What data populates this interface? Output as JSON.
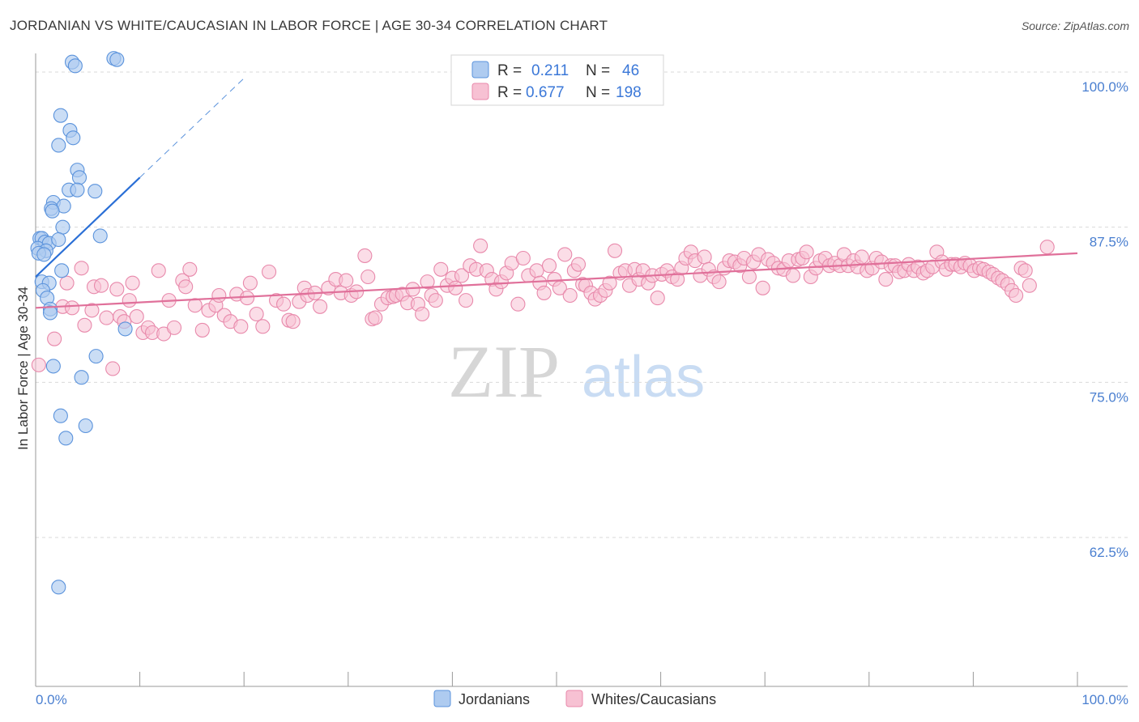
{
  "title": "JORDANIAN VS WHITE/CAUCASIAN IN LABOR FORCE | AGE 30-34 CORRELATION CHART",
  "source": "Source: ZipAtlas.com",
  "colors": {
    "blue_fill": "#aecbf0",
    "blue_stroke": "#5b93dc",
    "blue_line": "#2a6fd6",
    "pink_fill": "#f7c1d3",
    "pink_stroke": "#e889ab",
    "pink_line": "#e0709a",
    "grid": "#d9d9d9",
    "tick_text": "#4a7fd0"
  },
  "legend": {
    "rows": [
      {
        "r_label": "R =",
        "r_value": "0.211",
        "n_label": "N =",
        "n_value": "46"
      },
      {
        "r_label": "R =",
        "r_value": "0.677",
        "n_label": "N =",
        "n_value": "198"
      }
    ]
  },
  "bottom_legend": [
    "Jordanians",
    "Whites/Caucasians"
  ],
  "watermark": {
    "zip": "ZIP",
    "atlas": "atlas"
  },
  "chart_data": {
    "type": "scatter",
    "title": "JORDANIAN VS WHITE/CAUCASIAN IN LABOR FORCE | AGE 30-34 CORRELATION CHART",
    "xlabel": "",
    "ylabel": "In Labor Force | Age 30-34",
    "xlim": [
      0,
      100
    ],
    "ylim": [
      50.5,
      101.5
    ],
    "x_tick_labels": [
      "0.0%",
      "100.0%"
    ],
    "y_ticks": [
      62.5,
      75.0,
      87.5,
      100.0
    ],
    "y_tick_labels": [
      "62.5%",
      "75.0%",
      "87.5%",
      "100.0%"
    ],
    "grid": true,
    "series": [
      {
        "name": "Jordanians",
        "R": 0.211,
        "N": 46,
        "trend": {
          "x0": 0.0,
          "y0": 83.5,
          "x1": 10.0,
          "y1": 91.5,
          "dash_x1": 20.0,
          "dash_y1": 99.5
        },
        "points": [
          [
            3.5,
            100.8
          ],
          [
            3.8,
            100.5
          ],
          [
            7.5,
            101.1
          ],
          [
            7.8,
            101.0
          ],
          [
            2.4,
            96.5
          ],
          [
            3.3,
            95.3
          ],
          [
            3.6,
            94.7
          ],
          [
            2.2,
            94.1
          ],
          [
            4.0,
            92.1
          ],
          [
            4.2,
            91.5
          ],
          [
            3.2,
            90.5
          ],
          [
            4.0,
            90.5
          ],
          [
            5.7,
            90.4
          ],
          [
            1.7,
            89.5
          ],
          [
            1.5,
            89.0
          ],
          [
            2.7,
            89.2
          ],
          [
            1.6,
            88.8
          ],
          [
            2.6,
            87.5
          ],
          [
            0.4,
            86.6
          ],
          [
            0.6,
            86.6
          ],
          [
            0.9,
            86.3
          ],
          [
            1.3,
            86.2
          ],
          [
            2.2,
            86.5
          ],
          [
            6.2,
            86.8
          ],
          [
            0.2,
            85.8
          ],
          [
            1.0,
            85.6
          ],
          [
            0.3,
            85.4
          ],
          [
            0.8,
            85.3
          ],
          [
            2.5,
            84.0
          ],
          [
            0.6,
            83.1
          ],
          [
            1.3,
            83.0
          ],
          [
            0.7,
            82.4
          ],
          [
            1.1,
            81.8
          ],
          [
            1.4,
            80.9
          ],
          [
            1.4,
            80.6
          ],
          [
            8.6,
            79.3
          ],
          [
            5.8,
            77.1
          ],
          [
            1.7,
            76.3
          ],
          [
            4.4,
            75.4
          ],
          [
            2.4,
            72.3
          ],
          [
            4.8,
            71.5
          ],
          [
            2.9,
            70.5
          ],
          [
            2.2,
            58.5
          ]
        ]
      },
      {
        "name": "Whites/Caucasians",
        "R": 0.677,
        "N": 198,
        "trend": {
          "x0": 0.0,
          "y0": 81.0,
          "x1": 100.0,
          "y1": 85.4
        },
        "points": [
          [
            0.3,
            76.4
          ],
          [
            1.8,
            78.5
          ],
          [
            2.6,
            81.1
          ],
          [
            3.0,
            83.0
          ],
          [
            3.5,
            81.0
          ],
          [
            4.4,
            84.2
          ],
          [
            4.7,
            79.6
          ],
          [
            5.4,
            80.8
          ],
          [
            5.6,
            82.7
          ],
          [
            6.3,
            82.8
          ],
          [
            6.8,
            80.2
          ],
          [
            7.4,
            76.1
          ],
          [
            7.8,
            82.5
          ],
          [
            8.1,
            80.3
          ],
          [
            8.5,
            79.9
          ],
          [
            9.0,
            81.6
          ],
          [
            9.3,
            83.0
          ],
          [
            9.7,
            80.3
          ],
          [
            10.3,
            79.0
          ],
          [
            10.8,
            79.4
          ],
          [
            11.2,
            79.0
          ],
          [
            11.8,
            84.0
          ],
          [
            12.3,
            78.9
          ],
          [
            12.8,
            81.6
          ],
          [
            13.3,
            79.4
          ],
          [
            14.1,
            83.2
          ],
          [
            14.4,
            82.7
          ],
          [
            14.8,
            84.1
          ],
          [
            15.3,
            81.2
          ],
          [
            16.0,
            79.2
          ],
          [
            16.6,
            80.8
          ],
          [
            17.3,
            81.2
          ],
          [
            17.6,
            82.0
          ],
          [
            18.1,
            80.4
          ],
          [
            18.7,
            79.9
          ],
          [
            19.3,
            82.1
          ],
          [
            19.7,
            79.5
          ],
          [
            20.3,
            81.8
          ],
          [
            20.6,
            83.0
          ],
          [
            21.2,
            80.5
          ],
          [
            21.8,
            79.5
          ],
          [
            22.4,
            83.9
          ],
          [
            23.1,
            81.6
          ],
          [
            23.8,
            81.3
          ],
          [
            24.3,
            80.0
          ],
          [
            24.7,
            79.9
          ],
          [
            25.3,
            81.5
          ],
          [
            25.8,
            82.6
          ],
          [
            26.1,
            82.0
          ],
          [
            26.8,
            82.2
          ],
          [
            27.3,
            81.1
          ],
          [
            28.1,
            82.6
          ],
          [
            28.8,
            83.3
          ],
          [
            29.3,
            82.2
          ],
          [
            29.8,
            83.2
          ],
          [
            30.3,
            82.0
          ],
          [
            30.8,
            82.3
          ],
          [
            31.6,
            85.2
          ],
          [
            31.9,
            83.5
          ],
          [
            32.3,
            80.1
          ],
          [
            32.6,
            80.2
          ],
          [
            33.2,
            81.3
          ],
          [
            33.8,
            81.8
          ],
          [
            34.3,
            81.9
          ],
          [
            34.6,
            82.0
          ],
          [
            35.2,
            82.1
          ],
          [
            35.7,
            81.4
          ],
          [
            36.2,
            82.5
          ],
          [
            36.7,
            81.3
          ],
          [
            37.1,
            80.5
          ],
          [
            37.6,
            83.1
          ],
          [
            38.0,
            82.0
          ],
          [
            38.4,
            81.6
          ],
          [
            38.9,
            84.1
          ],
          [
            39.5,
            82.8
          ],
          [
            40.0,
            83.4
          ],
          [
            40.3,
            82.6
          ],
          [
            40.9,
            83.6
          ],
          [
            41.3,
            81.6
          ],
          [
            41.7,
            84.4
          ],
          [
            42.3,
            84.1
          ],
          [
            42.7,
            86.0
          ],
          [
            43.3,
            84.0
          ],
          [
            43.8,
            83.3
          ],
          [
            44.2,
            82.5
          ],
          [
            44.7,
            83.1
          ],
          [
            45.2,
            83.8
          ],
          [
            45.7,
            84.6
          ],
          [
            46.3,
            81.3
          ],
          [
            46.8,
            85.0
          ],
          [
            47.3,
            83.6
          ],
          [
            48.1,
            84.0
          ],
          [
            48.4,
            83.0
          ],
          [
            48.8,
            82.2
          ],
          [
            49.3,
            84.4
          ],
          [
            49.8,
            83.3
          ],
          [
            50.3,
            82.6
          ],
          [
            50.8,
            85.3
          ],
          [
            51.3,
            82.0
          ],
          [
            51.7,
            84.0
          ],
          [
            52.1,
            84.5
          ],
          [
            52.5,
            82.9
          ],
          [
            52.8,
            82.8
          ],
          [
            53.3,
            82.2
          ],
          [
            53.7,
            81.7
          ],
          [
            54.2,
            82.0
          ],
          [
            54.7,
            82.4
          ],
          [
            55.1,
            83.0
          ],
          [
            55.6,
            85.6
          ],
          [
            56.1,
            83.8
          ],
          [
            56.6,
            84.0
          ],
          [
            57.0,
            82.8
          ],
          [
            57.5,
            84.1
          ],
          [
            57.9,
            83.3
          ],
          [
            58.3,
            84.0
          ],
          [
            58.8,
            83.0
          ],
          [
            59.2,
            83.6
          ],
          [
            59.7,
            81.8
          ],
          [
            60.1,
            83.7
          ],
          [
            60.6,
            84.0
          ],
          [
            61.1,
            83.5
          ],
          [
            61.6,
            83.3
          ],
          [
            62.0,
            84.2
          ],
          [
            62.4,
            85.0
          ],
          [
            62.9,
            85.5
          ],
          [
            63.3,
            84.8
          ],
          [
            63.8,
            83.6
          ],
          [
            64.2,
            85.1
          ],
          [
            64.6,
            84.1
          ],
          [
            65.1,
            83.5
          ],
          [
            65.6,
            83.1
          ],
          [
            66.1,
            84.2
          ],
          [
            66.6,
            84.8
          ],
          [
            67.1,
            84.7
          ],
          [
            67.6,
            84.4
          ],
          [
            68.0,
            85.0
          ],
          [
            68.5,
            83.5
          ],
          [
            68.9,
            84.7
          ],
          [
            69.4,
            85.3
          ],
          [
            69.8,
            82.6
          ],
          [
            70.3,
            84.9
          ],
          [
            70.8,
            84.6
          ],
          [
            71.3,
            84.2
          ],
          [
            71.8,
            84.1
          ],
          [
            72.3,
            84.8
          ],
          [
            72.7,
            83.6
          ],
          [
            73.2,
            84.9
          ],
          [
            73.6,
            85.0
          ],
          [
            74.0,
            85.5
          ],
          [
            74.4,
            83.5
          ],
          [
            74.9,
            84.2
          ],
          [
            75.3,
            84.8
          ],
          [
            75.8,
            85.0
          ],
          [
            76.2,
            84.4
          ],
          [
            76.7,
            84.6
          ],
          [
            77.2,
            84.4
          ],
          [
            77.6,
            85.3
          ],
          [
            78.0,
            84.4
          ],
          [
            78.5,
            84.8
          ],
          [
            78.9,
            84.3
          ],
          [
            79.3,
            85.1
          ],
          [
            79.8,
            84.0
          ],
          [
            80.3,
            84.2
          ],
          [
            80.7,
            85.0
          ],
          [
            81.2,
            84.7
          ],
          [
            81.6,
            83.3
          ],
          [
            82.1,
            84.4
          ],
          [
            82.5,
            84.4
          ],
          [
            82.9,
            83.9
          ],
          [
            83.4,
            84.0
          ],
          [
            83.8,
            84.5
          ],
          [
            84.3,
            84.0
          ],
          [
            84.7,
            84.3
          ],
          [
            85.2,
            83.8
          ],
          [
            85.6,
            84.0
          ],
          [
            86.1,
            84.3
          ],
          [
            86.5,
            85.5
          ],
          [
            87.0,
            84.7
          ],
          [
            87.4,
            84.1
          ],
          [
            87.9,
            84.5
          ],
          [
            88.3,
            84.5
          ],
          [
            88.8,
            84.3
          ],
          [
            89.2,
            84.6
          ],
          [
            89.7,
            84.4
          ],
          [
            90.1,
            84.0
          ],
          [
            90.6,
            84.2
          ],
          [
            91.0,
            84.1
          ],
          [
            91.5,
            83.9
          ],
          [
            91.9,
            83.7
          ],
          [
            92.4,
            83.4
          ],
          [
            92.8,
            83.2
          ],
          [
            93.3,
            82.9
          ],
          [
            93.7,
            82.4
          ],
          [
            94.1,
            82.0
          ],
          [
            94.6,
            84.2
          ],
          [
            95.0,
            84.0
          ],
          [
            95.4,
            82.8
          ],
          [
            97.1,
            85.9
          ]
        ]
      }
    ]
  }
}
